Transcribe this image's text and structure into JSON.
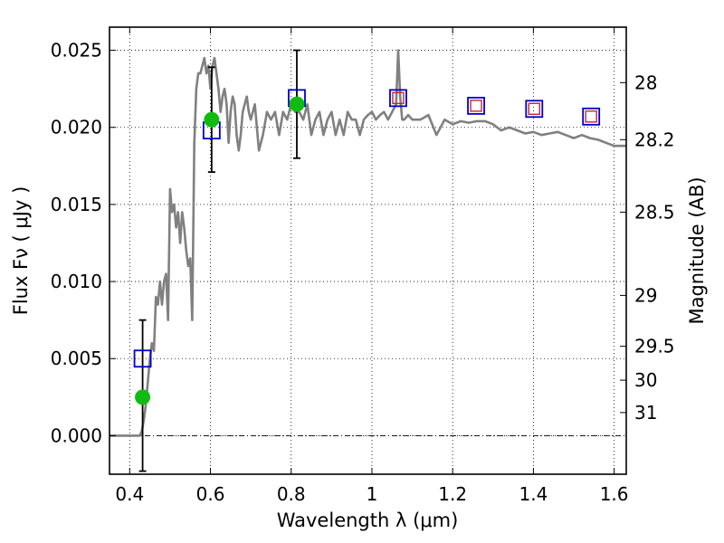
{
  "chart_data": {
    "type": "scatter",
    "xlabel": "Wavelength  λ (μm)",
    "ylabel": "Flux  Fν  ( μJy )",
    "ylabel_right": "Magnitude (AB)",
    "xlim": [
      0.35,
      1.63
    ],
    "ylim": [
      -0.0025,
      0.0265
    ],
    "grid": true,
    "x_ticks": [
      {
        "value": 0.4,
        "label": "0.4"
      },
      {
        "value": 0.6,
        "label": "0.6"
      },
      {
        "value": 0.8,
        "label": "0.8"
      },
      {
        "value": 1.0,
        "label": "1"
      },
      {
        "value": 1.2,
        "label": "1.2"
      },
      {
        "value": 1.4,
        "label": "1.4"
      },
      {
        "value": 1.6,
        "label": "1.6"
      }
    ],
    "y_ticks": [
      {
        "value": 0.0,
        "label": "0.000"
      },
      {
        "value": 0.005,
        "label": "0.005"
      },
      {
        "value": 0.01,
        "label": "0.010"
      },
      {
        "value": 0.015,
        "label": "0.015"
      },
      {
        "value": 0.02,
        "label": "0.020"
      },
      {
        "value": 0.025,
        "label": "0.025"
      }
    ],
    "right_ticks": [
      {
        "flux": 0.0229,
        "label": "28"
      },
      {
        "flux": 0.0192,
        "label": "28.2"
      },
      {
        "flux": 0.0145,
        "label": "28.5"
      },
      {
        "flux": 0.0091,
        "label": "29"
      },
      {
        "flux": 0.0058,
        "label": "29.5"
      },
      {
        "flux": 0.0036,
        "label": "30"
      },
      {
        "flux": 0.0015,
        "label": "31"
      }
    ],
    "reference_line": {
      "y": 0.0
    },
    "series": [
      {
        "kind": "line",
        "color": "#808080",
        "x": [
          0.35,
          0.42,
          0.425,
          0.43,
          0.435,
          0.44,
          0.445,
          0.45,
          0.455,
          0.46,
          0.465,
          0.47,
          0.475,
          0.48,
          0.485,
          0.49,
          0.495,
          0.5,
          0.505,
          0.51,
          0.515,
          0.52,
          0.525,
          0.53,
          0.535,
          0.54,
          0.545,
          0.55,
          0.555,
          0.56,
          0.565,
          0.57,
          0.575,
          0.58,
          0.585,
          0.59,
          0.595,
          0.6,
          0.605,
          0.61,
          0.615,
          0.62,
          0.625,
          0.63,
          0.635,
          0.64,
          0.645,
          0.65,
          0.655,
          0.66,
          0.665,
          0.67,
          0.675,
          0.68,
          0.685,
          0.69,
          0.695,
          0.7,
          0.71,
          0.72,
          0.73,
          0.74,
          0.75,
          0.76,
          0.77,
          0.78,
          0.79,
          0.8,
          0.81,
          0.82,
          0.83,
          0.84,
          0.85,
          0.86,
          0.87,
          0.88,
          0.89,
          0.9,
          0.91,
          0.92,
          0.93,
          0.94,
          0.95,
          0.96,
          0.97,
          0.98,
          0.99,
          1.0,
          1.01,
          1.02,
          1.03,
          1.04,
          1.05,
          1.06,
          1.065,
          1.07,
          1.075,
          1.08,
          1.09,
          1.1,
          1.12,
          1.14,
          1.16,
          1.18,
          1.2,
          1.22,
          1.24,
          1.26,
          1.28,
          1.3,
          1.32,
          1.34,
          1.36,
          1.38,
          1.4,
          1.42,
          1.44,
          1.46,
          1.48,
          1.5,
          1.52,
          1.54,
          1.56,
          1.58,
          1.6,
          1.63
        ],
        "y": [
          0.0,
          0.0,
          0.0,
          0.0003,
          0.001,
          0.002,
          0.0035,
          0.005,
          0.006,
          0.0055,
          0.009,
          0.0085,
          0.01,
          0.0085,
          0.01,
          0.0105,
          0.0075,
          0.016,
          0.0145,
          0.015,
          0.0135,
          0.0145,
          0.0125,
          0.0145,
          0.0135,
          0.012,
          0.011,
          0.0115,
          0.0075,
          0.019,
          0.0225,
          0.0235,
          0.0235,
          0.024,
          0.0245,
          0.0235,
          0.024,
          0.0225,
          0.024,
          0.0245,
          0.0235,
          0.0225,
          0.021,
          0.022,
          0.0225,
          0.0215,
          0.019,
          0.021,
          0.022,
          0.0215,
          0.0195,
          0.0185,
          0.0195,
          0.021,
          0.0215,
          0.022,
          0.021,
          0.0205,
          0.0215,
          0.0185,
          0.0195,
          0.021,
          0.0205,
          0.021,
          0.0195,
          0.021,
          0.0205,
          0.0215,
          0.021,
          0.021,
          0.0205,
          0.0215,
          0.0195,
          0.0205,
          0.021,
          0.0195,
          0.0205,
          0.021,
          0.0195,
          0.0205,
          0.0195,
          0.021,
          0.0205,
          0.0205,
          0.0195,
          0.0205,
          0.0208,
          0.021,
          0.0205,
          0.0208,
          0.021,
          0.0205,
          0.021,
          0.0215,
          0.025,
          0.022,
          0.0205,
          0.0205,
          0.0208,
          0.0205,
          0.0205,
          0.0208,
          0.0195,
          0.0205,
          0.0202,
          0.0204,
          0.0203,
          0.0204,
          0.0204,
          0.0202,
          0.0198,
          0.02,
          0.0198,
          0.0196,
          0.0197,
          0.0195,
          0.0196,
          0.0197,
          0.0195,
          0.0193,
          0.0195,
          0.0193,
          0.0192,
          0.019,
          0.0188,
          0.0188
        ]
      },
      {
        "kind": "open_square",
        "color": "#0000cc",
        "x": [
          0.432,
          0.603,
          0.814,
          1.065,
          1.258,
          1.402,
          1.543
        ],
        "y": [
          0.005,
          0.0198,
          0.0219,
          0.0219,
          0.0214,
          0.0212,
          0.0207
        ]
      },
      {
        "kind": "open_square_small",
        "color": "#cc2233",
        "x": [
          1.065,
          1.258,
          1.402,
          1.543
        ],
        "y": [
          0.0219,
          0.0214,
          0.0212,
          0.0207
        ]
      },
      {
        "kind": "filled_circle",
        "color": "#11bb11",
        "x": [
          0.432,
          0.603,
          0.814
        ],
        "y": [
          0.0025,
          0.0205,
          0.0215
        ],
        "yerr_low": [
          0.0048,
          0.0034,
          0.0035
        ],
        "yerr_high": [
          0.005,
          0.0034,
          0.0035
        ]
      }
    ]
  }
}
